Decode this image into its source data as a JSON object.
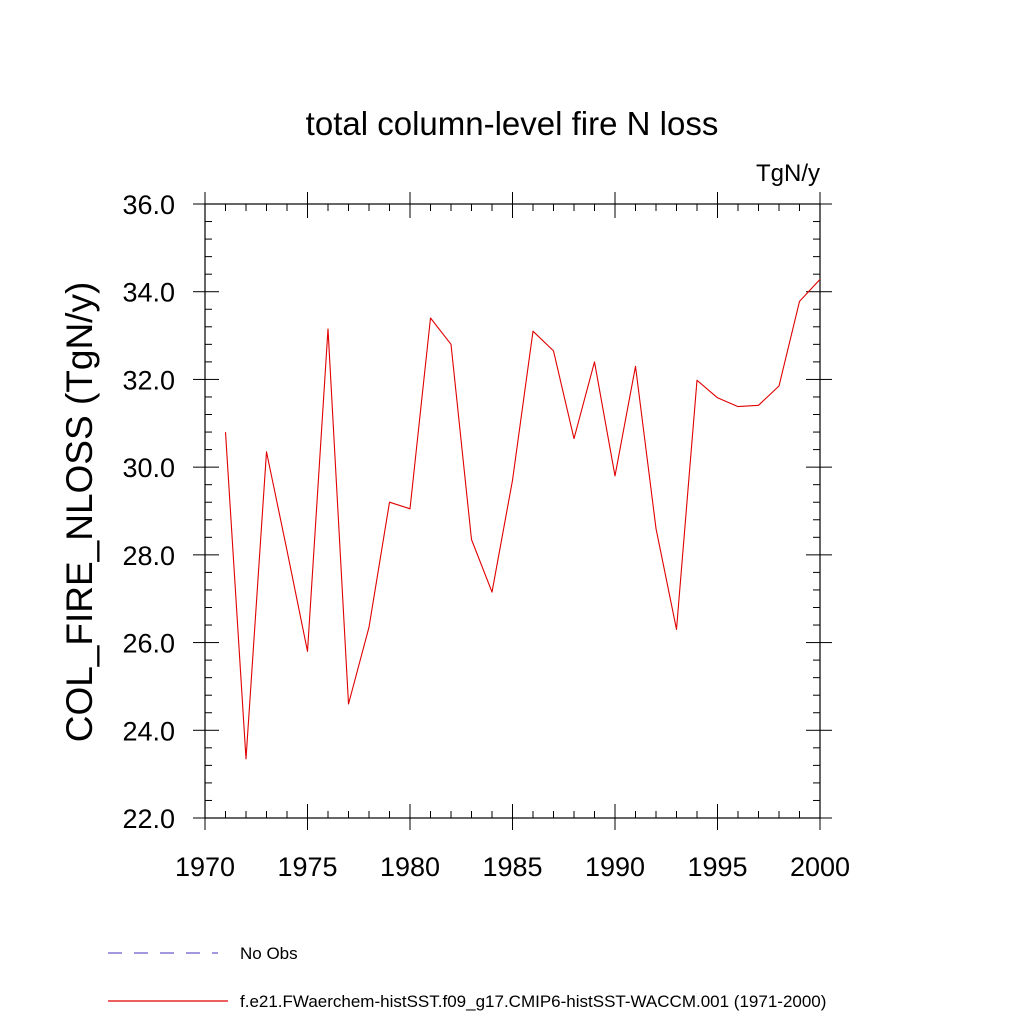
{
  "chart_data": {
    "type": "line",
    "title": "total column-level fire N loss",
    "units": "TgN/y",
    "ylabel": "COL_FIRE_NLOSS  (TgN/y)",
    "xlabel": "",
    "xlim": [
      1970,
      2000
    ],
    "ylim": [
      22.0,
      36.0
    ],
    "x_ticks": [
      "1970",
      "1975",
      "1980",
      "1985",
      "1990",
      "1995",
      "2000"
    ],
    "y_ticks": [
      "22.0",
      "24.0",
      "26.0",
      "28.0",
      "30.0",
      "32.0",
      "34.0",
      "36.0"
    ],
    "grid": false,
    "legend_position": "bottom-left",
    "series": [
      {
        "name": "No Obs",
        "color": "#6a5acd",
        "dashed": true,
        "x": [],
        "values": []
      },
      {
        "name": "f.e21.FWaerchem-histSST.f09_g17.CMIP6-histSST-WACCM.001 (1971-2000)",
        "color": "#e00000",
        "dashed": false,
        "x": [
          1971,
          1972,
          1973,
          1974,
          1975,
          1976,
          1977,
          1978,
          1979,
          1980,
          1981,
          1982,
          1983,
          1984,
          1985,
          1986,
          1987,
          1988,
          1989,
          1990,
          1991,
          1992,
          1993,
          1994,
          1995,
          1996,
          1997,
          1998,
          1999,
          2000
        ],
        "values": [
          30.8,
          23.35,
          30.35,
          28.1,
          25.8,
          33.15,
          24.6,
          26.35,
          29.2,
          29.05,
          33.4,
          32.8,
          28.35,
          27.15,
          29.7,
          33.1,
          32.65,
          30.65,
          32.4,
          29.8,
          32.3,
          28.6,
          26.3,
          31.98,
          31.58,
          31.38,
          31.41,
          31.85,
          33.78,
          34.28
        ]
      }
    ]
  }
}
